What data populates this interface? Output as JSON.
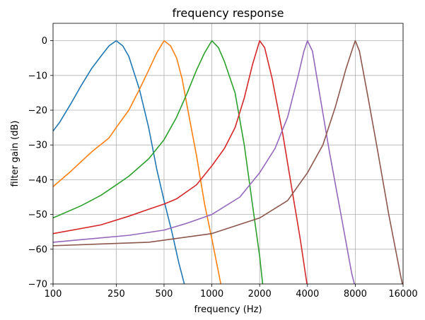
{
  "chart_data": {
    "type": "line",
    "title": "frequency response",
    "xlabel": "frequency (Hz)",
    "ylabel": "filter gain (dB)",
    "xscale": "log",
    "xlim": [
      100,
      16000
    ],
    "ylim": [
      -70,
      5
    ],
    "xticks": [
      100,
      250,
      500,
      1000,
      2000,
      4000,
      8000,
      16000
    ],
    "yticks": [
      0,
      -10,
      -20,
      -30,
      -40,
      -50,
      -60,
      -70
    ],
    "grid": true,
    "series": [
      {
        "color": "#1f77b4",
        "points": [
          [
            100,
            -26
          ],
          [
            110,
            -23.5
          ],
          [
            130,
            -18
          ],
          [
            150,
            -13
          ],
          [
            175,
            -8
          ],
          [
            200,
            -4.5
          ],
          [
            225,
            -1.5
          ],
          [
            250,
            0
          ],
          [
            275,
            -1.5
          ],
          [
            300,
            -4.5
          ],
          [
            350,
            -14
          ],
          [
            400,
            -25
          ],
          [
            450,
            -37
          ],
          [
            500,
            -46
          ],
          [
            560,
            -55
          ],
          [
            620,
            -64
          ],
          [
            680,
            -71
          ]
        ]
      },
      {
        "color": "#ff7f0e",
        "points": [
          [
            100,
            -42
          ],
          [
            130,
            -37.5
          ],
          [
            175,
            -32
          ],
          [
            225,
            -28
          ],
          [
            250,
            -25
          ],
          [
            300,
            -20
          ],
          [
            350,
            -14
          ],
          [
            400,
            -8.5
          ],
          [
            450,
            -3.5
          ],
          [
            500,
            0
          ],
          [
            550,
            -1.5
          ],
          [
            600,
            -5
          ],
          [
            650,
            -11
          ],
          [
            700,
            -19
          ],
          [
            800,
            -33
          ],
          [
            900,
            -47
          ],
          [
            1000,
            -57
          ],
          [
            1150,
            -71
          ]
        ]
      },
      {
        "color": "#2ca02c",
        "points": [
          [
            100,
            -51
          ],
          [
            150,
            -47.5
          ],
          [
            200,
            -44.5
          ],
          [
            250,
            -41.5
          ],
          [
            300,
            -39
          ],
          [
            400,
            -34
          ],
          [
            500,
            -28.5
          ],
          [
            600,
            -22
          ],
          [
            700,
            -15
          ],
          [
            800,
            -8.5
          ],
          [
            900,
            -3.5
          ],
          [
            1000,
            0
          ],
          [
            1100,
            -2
          ],
          [
            1200,
            -6
          ],
          [
            1400,
            -15
          ],
          [
            1600,
            -30
          ],
          [
            1800,
            -47
          ],
          [
            2000,
            -62
          ],
          [
            2100,
            -71
          ]
        ]
      },
      {
        "color": "#d62728",
        "points": [
          [
            100,
            -55.5
          ],
          [
            200,
            -53
          ],
          [
            300,
            -50.5
          ],
          [
            400,
            -48.5
          ],
          [
            500,
            -47
          ],
          [
            600,
            -45.5
          ],
          [
            800,
            -41.5
          ],
          [
            1000,
            -36
          ],
          [
            1200,
            -31
          ],
          [
            1400,
            -25
          ],
          [
            1600,
            -16.5
          ],
          [
            1800,
            -7
          ],
          [
            2000,
            0
          ],
          [
            2150,
            -2
          ],
          [
            2400,
            -11
          ],
          [
            2800,
            -27
          ],
          [
            3200,
            -43
          ],
          [
            3600,
            -57
          ],
          [
            4000,
            -71
          ]
        ]
      },
      {
        "color": "#9467bd",
        "points": [
          [
            100,
            -58
          ],
          [
            300,
            -56
          ],
          [
            500,
            -54.5
          ],
          [
            700,
            -52.5
          ],
          [
            1000,
            -50
          ],
          [
            1500,
            -45
          ],
          [
            2000,
            -38
          ],
          [
            2500,
            -31
          ],
          [
            3000,
            -22
          ],
          [
            3500,
            -10
          ],
          [
            3800,
            -3
          ],
          [
            4000,
            0
          ],
          [
            4300,
            -3
          ],
          [
            4800,
            -16
          ],
          [
            5500,
            -32
          ],
          [
            6500,
            -50
          ],
          [
            7600,
            -67
          ],
          [
            8000,
            -71
          ]
        ]
      },
      {
        "color": "#8c564b",
        "points": [
          [
            100,
            -59
          ],
          [
            400,
            -58
          ],
          [
            1000,
            -55.5
          ],
          [
            2000,
            -51
          ],
          [
            3000,
            -46
          ],
          [
            4000,
            -38
          ],
          [
            5000,
            -30
          ],
          [
            6000,
            -19
          ],
          [
            7000,
            -8
          ],
          [
            7600,
            -3
          ],
          [
            8000,
            0
          ],
          [
            8500,
            -3
          ],
          [
            9600,
            -16
          ],
          [
            11000,
            -31
          ],
          [
            13000,
            -50
          ],
          [
            15500,
            -68
          ],
          [
            16000,
            -71
          ]
        ]
      }
    ]
  }
}
